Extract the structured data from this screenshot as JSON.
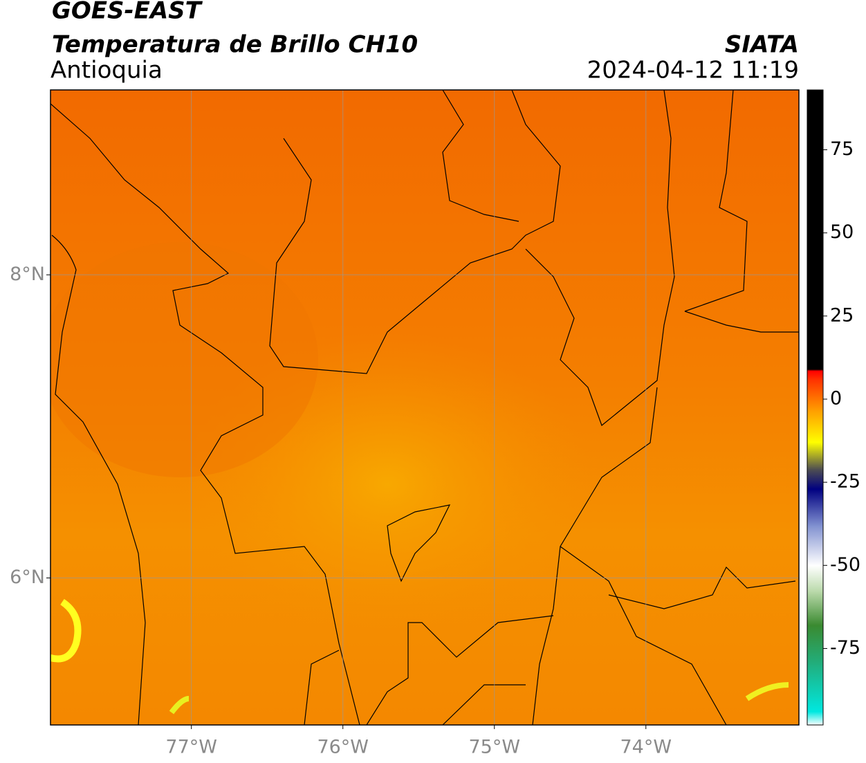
{
  "header": {
    "line1": "GOES-EAST",
    "line2": "Temperatura de Brillo CH10",
    "region": "Antioquia",
    "source": "SIATA",
    "datetime": "2024-04-12 11:19"
  },
  "map": {
    "xlim": [
      -77.93,
      -72.99
    ],
    "ylim": [
      5.03,
      9.22
    ],
    "xticks": [
      {
        "value": -77,
        "label": "77°W"
      },
      {
        "value": -76,
        "label": "76°W"
      },
      {
        "value": -75,
        "label": "75°W"
      },
      {
        "value": -74,
        "label": "74°W"
      }
    ],
    "yticks": [
      {
        "value": 8,
        "label": "8°N"
      },
      {
        "value": 6,
        "label": "6°N"
      }
    ],
    "grid": true
  },
  "colorbar": {
    "lim": [
      -98,
      93
    ],
    "ticks": [
      75,
      50,
      25,
      0,
      -25,
      -50,
      -75
    ],
    "stops": [
      {
        "value": -98,
        "color": "#ffffff"
      },
      {
        "value": -94,
        "color": "#00e8e0"
      },
      {
        "value": -80,
        "color": "#20b080"
      },
      {
        "value": -68,
        "color": "#3a8a30"
      },
      {
        "value": -58,
        "color": "#b8d8a8"
      },
      {
        "value": -50,
        "color": "#ffffff"
      },
      {
        "value": -38,
        "color": "#8090d0"
      },
      {
        "value": -27,
        "color": "#000080"
      },
      {
        "value": -21,
        "color": "#505050"
      },
      {
        "value": -13,
        "color": "#ffff00"
      },
      {
        "value": -3,
        "color": "#ff9900"
      },
      {
        "value": 6,
        "color": "#ff3000"
      },
      {
        "value": 8.5,
        "color": "#ff0000"
      },
      {
        "value": 9,
        "color": "#000000"
      },
      {
        "value": 93,
        "color": "#000000"
      }
    ]
  }
}
